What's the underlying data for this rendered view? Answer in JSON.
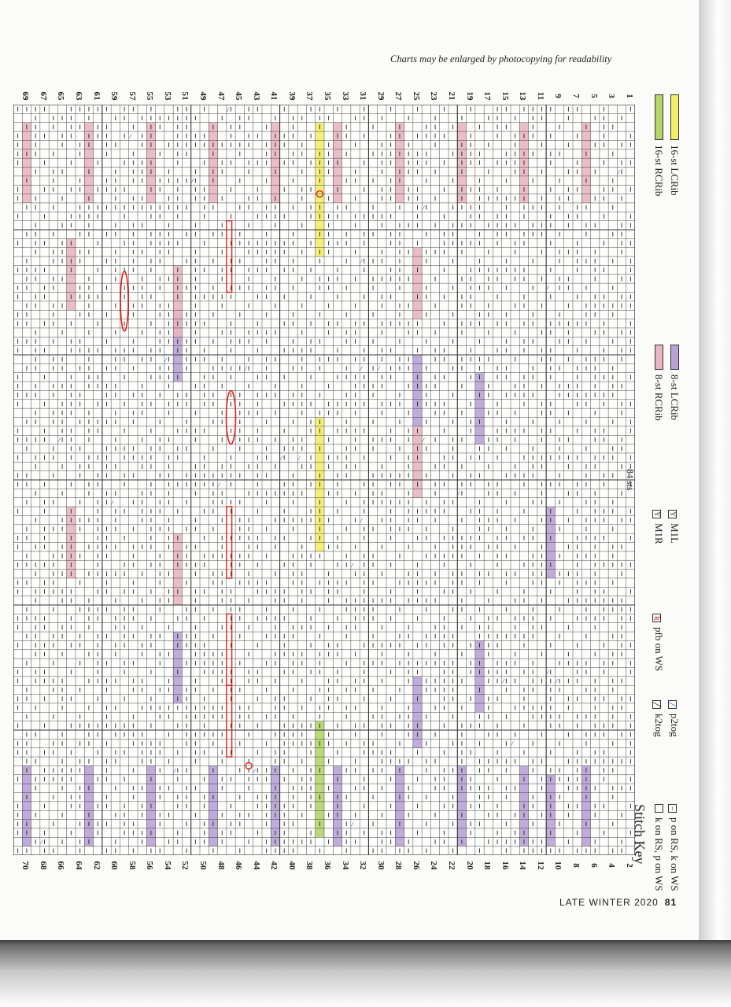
{
  "caption": "Charts may be enlarged by photocopying for readability",
  "chart": {
    "stitch_count_label": "84 sts",
    "row_labels_top": [
      "69",
      "67",
      "65",
      "63",
      "61",
      "59",
      "57",
      "55",
      "53",
      "51",
      "49",
      "47",
      "45",
      "43",
      "41",
      "39",
      "37",
      "35",
      "33",
      "31",
      "29",
      "27",
      "25",
      "23",
      "21",
      "19",
      "17",
      "15",
      "13",
      "11",
      "9",
      "7",
      "5",
      "3",
      "1"
    ],
    "row_labels_bottom": [
      "70",
      "68",
      "66",
      "64",
      "62",
      "60",
      "58",
      "56",
      "54",
      "52",
      "50",
      "48",
      "46",
      "44",
      "42",
      "40",
      "38",
      "36",
      "34",
      "32",
      "30",
      "28",
      "26",
      "24",
      "22",
      "20",
      "18",
      "16",
      "14",
      "12",
      "10",
      "8",
      "6",
      "4",
      "2"
    ],
    "colors": {
      "pink_cable": "#e8b6c1",
      "violet_cable": "#b9a3d6",
      "yellow_cable": "#f2ee6a",
      "green_cable": "#b5d56a",
      "red_pen": "#e0201b",
      "blue_p2tog": "#3d6fc2"
    }
  },
  "key": {
    "title": "Stitch Key",
    "items": {
      "knit": {
        "label": "k on RS, p on WS",
        "icon": "empty-square-icon"
      },
      "purl": {
        "label": "p on RS, k on WS",
        "icon": "dash-square-icon"
      },
      "k2tog": {
        "label": "k2tog",
        "icon": "k2tog-icon"
      },
      "p2tog": {
        "label": "p2tog",
        "icon": "p2tog-icon"
      },
      "pfb": {
        "label": "pfb on WS",
        "icon": "pfb-icon"
      },
      "m1r": {
        "label": "M1R",
        "icon": "m1r-icon"
      },
      "m1l": {
        "label": "M1L",
        "icon": "m1l-icon"
      },
      "rcrib8": {
        "label": "8-st RCRib"
      },
      "lcrib8": {
        "label": "8-st LCRib"
      },
      "rcrib16": {
        "label": "16-st RCRib"
      },
      "lcrib16": {
        "label": "16-st LCRib"
      }
    }
  },
  "footer": {
    "issue": "LATE WINTER 2020",
    "page_number": "81"
  }
}
